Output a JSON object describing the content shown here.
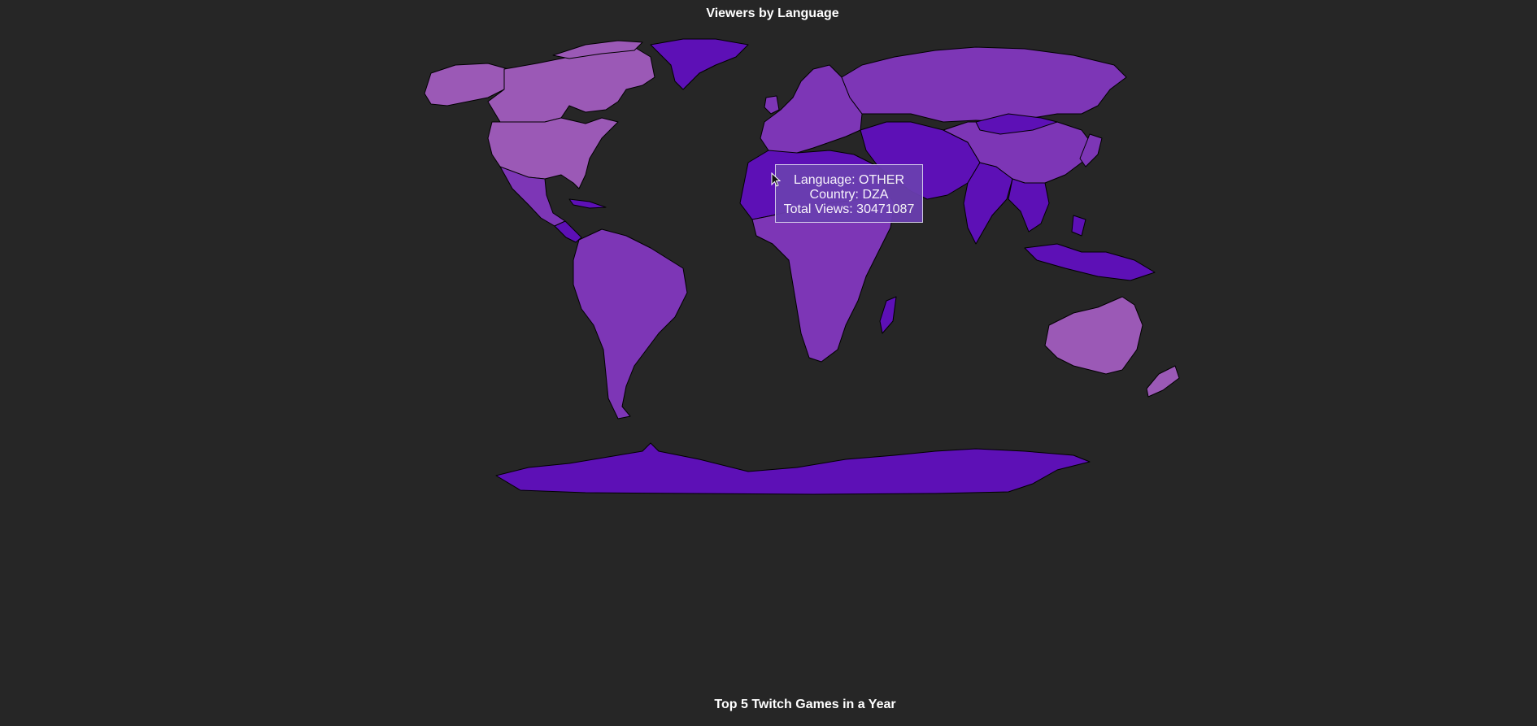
{
  "map": {
    "title": "Viewers by Language",
    "colors": {
      "background": "#262626",
      "light": "#9b59b6",
      "medium": "#7d36b6",
      "dark": "#5d10b6",
      "tooltip": "#6a3fb0"
    },
    "regions": [
      {
        "id": "canada",
        "fill": "light"
      },
      {
        "id": "usa",
        "fill": "light"
      },
      {
        "id": "alaska",
        "fill": "light"
      },
      {
        "id": "greenland",
        "fill": "dark"
      },
      {
        "id": "mexico",
        "fill": "medium"
      },
      {
        "id": "central-america",
        "fill": "dark"
      },
      {
        "id": "south-america",
        "fill": "medium"
      },
      {
        "id": "europe",
        "fill": "medium"
      },
      {
        "id": "russia",
        "fill": "medium"
      },
      {
        "id": "north-africa",
        "fill": "dark"
      },
      {
        "id": "africa",
        "fill": "medium"
      },
      {
        "id": "madagascar",
        "fill": "dark"
      },
      {
        "id": "middle-east",
        "fill": "dark"
      },
      {
        "id": "india",
        "fill": "dark"
      },
      {
        "id": "china",
        "fill": "medium"
      },
      {
        "id": "mongolia",
        "fill": "dark"
      },
      {
        "id": "southeast-asia",
        "fill": "dark"
      },
      {
        "id": "indonesia",
        "fill": "dark"
      },
      {
        "id": "japan",
        "fill": "medium"
      },
      {
        "id": "australia",
        "fill": "light"
      },
      {
        "id": "new-zealand",
        "fill": "light"
      },
      {
        "id": "antarctica",
        "fill": "dark"
      }
    ]
  },
  "tooltip": {
    "language": "Language: OTHER",
    "country": "Country: DZA",
    "views": "Total Views: 30471087"
  },
  "second_chart": {
    "title": "Top 5 Twitch Games in a Year"
  }
}
